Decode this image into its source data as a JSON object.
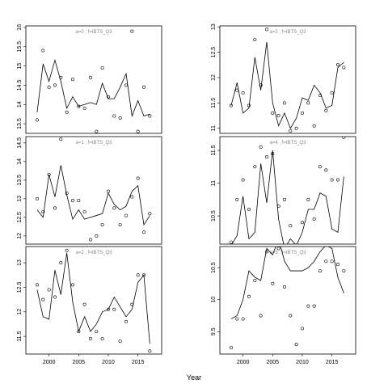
{
  "x_label": "Year",
  "chart_data": [
    {
      "type": "line",
      "title": "a=0 ; f=IBTS_Q3",
      "x": [
        1998,
        1999,
        2000,
        2001,
        2002,
        2003,
        2004,
        2005,
        2006,
        2007,
        2008,
        2009,
        2010,
        2011,
        2012,
        2013,
        2014,
        2015,
        2016,
        2017
      ],
      "xlim": [
        1996.1,
        2019.0
      ],
      "ylim": [
        13.25,
        16.04
      ],
      "yticks": [
        13.5,
        14.0,
        14.5,
        15.0,
        15.5,
        16.0
      ],
      "series": [
        {
          "kind": "line",
          "color": "#000000",
          "values": [
            13.8,
            15.05,
            14.6,
            15.15,
            14.6,
            13.9,
            14.2,
            13.95,
            14.0,
            14.05,
            14.0,
            14.55,
            14.15,
            14.15,
            14.45,
            14.8,
            13.7,
            14.1,
            13.7,
            13.75
          ]
        },
        {
          "kind": "points",
          "color": "#000000",
          "values": [
            13.6,
            15.4,
            14.45,
            14.5,
            14.7,
            13.8,
            14.65,
            13.95,
            13.9,
            14.7,
            13.3,
            14.95,
            14.2,
            13.7,
            13.65,
            14.5,
            15.9,
            13.3,
            14.45,
            13.7
          ]
        }
      ]
    },
    {
      "type": "line",
      "title": "a=1 ; f=IBTS_Q3",
      "x": [
        1998,
        1999,
        2000,
        2001,
        2002,
        2003,
        2004,
        2005,
        2006,
        2007,
        2008,
        2009,
        2010,
        2011,
        2012,
        2013,
        2014,
        2015,
        2016,
        2017
      ],
      "xlim": [
        1996.1,
        2019.0
      ],
      "ylim": [
        11.78,
        14.67
      ],
      "yticks": [
        12.0,
        12.5,
        13.0,
        13.5,
        14.0,
        14.5
      ],
      "series": [
        {
          "kind": "line",
          "color": "#000000",
          "values": [
            12.7,
            12.5,
            13.65,
            13.05,
            13.9,
            13.1,
            12.45,
            12.7,
            12.45,
            12.5,
            12.55,
            12.6,
            13.15,
            12.85,
            12.7,
            12.8,
            13.2,
            13.35,
            12.3,
            12.55
          ]
        },
        {
          "kind": "points",
          "color": "#000000",
          "values": [
            13.0,
            12.65,
            13.65,
            12.75,
            14.6,
            13.15,
            12.95,
            12.95,
            12.65,
            11.9,
            12.0,
            12.3,
            13.2,
            12.75,
            12.3,
            12.55,
            13.05,
            13.55,
            12.1,
            12.6
          ]
        }
      ]
    },
    {
      "type": "line",
      "title": "a=2 ; f=IBTS_Q3",
      "x": [
        1998,
        1999,
        2000,
        2001,
        2002,
        2003,
        2004,
        2005,
        2006,
        2007,
        2008,
        2009,
        2010,
        2011,
        2012,
        2013,
        2014,
        2015,
        2016,
        2017
      ],
      "xlim": [
        1996.1,
        2019.0
      ],
      "ylim": [
        11.14,
        13.33
      ],
      "yticks": [
        11.5,
        12.0,
        12.5,
        13.0
      ],
      "xticks": [
        2000,
        2005,
        2010,
        2015
      ],
      "series": [
        {
          "kind": "line",
          "color": "#000000",
          "values": [
            12.45,
            11.9,
            11.85,
            12.85,
            12.35,
            13.2,
            12.2,
            11.6,
            11.9,
            11.6,
            11.75,
            12.0,
            12.05,
            12.3,
            12.1,
            11.9,
            12.05,
            12.6,
            12.75,
            11.35
          ]
        },
        {
          "kind": "points",
          "color": "#000000",
          "values": [
            12.55,
            12.25,
            12.45,
            12.3,
            13.0,
            13.25,
            12.55,
            11.6,
            12.15,
            11.45,
            11.6,
            11.45,
            12.05,
            12.05,
            11.4,
            11.8,
            12.15,
            12.75,
            12.75,
            11.2
          ]
        }
      ]
    },
    {
      "type": "line",
      "title": "a=3 ; f=IBTS_Q3",
      "x": [
        1998,
        1999,
        2000,
        2001,
        2002,
        2003,
        2004,
        2005,
        2006,
        2007,
        2008,
        2009,
        2010,
        2011,
        2012,
        2013,
        2014,
        2015,
        2016,
        2017
      ],
      "xlim": [
        1996.1,
        2019.0
      ],
      "ylim": [
        10.9,
        13.02
      ],
      "yticks": [
        11.0,
        11.5,
        12.0,
        12.5,
        13.0
      ],
      "series": [
        {
          "kind": "line",
          "color": "#000000",
          "values": [
            11.45,
            11.9,
            11.3,
            11.4,
            12.4,
            11.75,
            12.7,
            11.5,
            11.05,
            11.3,
            11.0,
            11.2,
            11.6,
            11.55,
            11.85,
            11.7,
            11.4,
            11.45,
            12.2,
            12.3
          ]
        },
        {
          "kind": "points",
          "color": "#000000",
          "values": [
            11.45,
            11.75,
            11.7,
            11.45,
            12.75,
            11.85,
            12.95,
            11.3,
            11.25,
            11.5,
            10.95,
            11.0,
            11.3,
            11.5,
            11.05,
            11.65,
            11.35,
            11.7,
            12.25,
            12.2
          ]
        }
      ]
    },
    {
      "type": "line",
      "title": "a=4 ; f=IBTS_Q3",
      "x": [
        1998,
        1999,
        2000,
        2001,
        2002,
        2003,
        2004,
        2005,
        2006,
        2007,
        2008,
        2009,
        2010,
        2011,
        2012,
        2013,
        2014,
        2015,
        2016,
        2017
      ],
      "xlim": [
        1996.1,
        2019.0
      ],
      "ylim": [
        10.07,
        11.71
      ],
      "yticks": [
        10.5,
        11.0,
        11.5
      ],
      "series": [
        {
          "kind": "line",
          "color": "#000000",
          "values": [
            10.05,
            10.2,
            10.8,
            10.15,
            10.25,
            11.3,
            10.7,
            11.5,
            10.45,
            10.0,
            10.15,
            10.05,
            10.25,
            10.6,
            10.6,
            10.85,
            10.8,
            10.3,
            10.25,
            11.1
          ]
        },
        {
          "kind": "points",
          "color": "#000000",
          "values": [
            10.1,
            10.75,
            11.05,
            10.6,
            11.25,
            11.55,
            11.4,
            11.45,
            10.65,
            10.75,
            10.35,
            10.05,
            10.4,
            10.75,
            10.45,
            11.25,
            11.2,
            11.05,
            11.05,
            11.7
          ]
        }
      ]
    },
    {
      "type": "line",
      "title": "a=5 ; f=IBTS_Q3",
      "x": [
        1998,
        1999,
        2000,
        2001,
        2002,
        2003,
        2004,
        2005,
        2006,
        2007,
        2008,
        2009,
        2010,
        2011,
        2012,
        2013,
        2014,
        2015,
        2016,
        2017
      ],
      "xlim": [
        1996.1,
        2019.0
      ],
      "ylim": [
        9.15,
        10.83
      ],
      "yticks": [
        9.5,
        10.0,
        10.5
      ],
      "xticks": [
        2000,
        2005,
        2010,
        2015
      ],
      "series": [
        {
          "kind": "line",
          "color": "#000000",
          "values": [
            9.7,
            9.75,
            10.0,
            10.45,
            10.35,
            10.3,
            10.8,
            10.7,
            10.95,
            10.6,
            10.45,
            10.45,
            10.45,
            10.5,
            10.6,
            10.75,
            10.85,
            10.8,
            10.35,
            10.1
          ]
        },
        {
          "kind": "points",
          "color": "#000000",
          "values": [
            9.25,
            9.7,
            9.7,
            10.05,
            10.3,
            9.75,
            10.75,
            10.25,
            10.8,
            10.2,
            9.75,
            9.3,
            9.55,
            9.9,
            9.9,
            10.45,
            10.6,
            10.6,
            10.55,
            10.45
          ]
        }
      ]
    }
  ]
}
